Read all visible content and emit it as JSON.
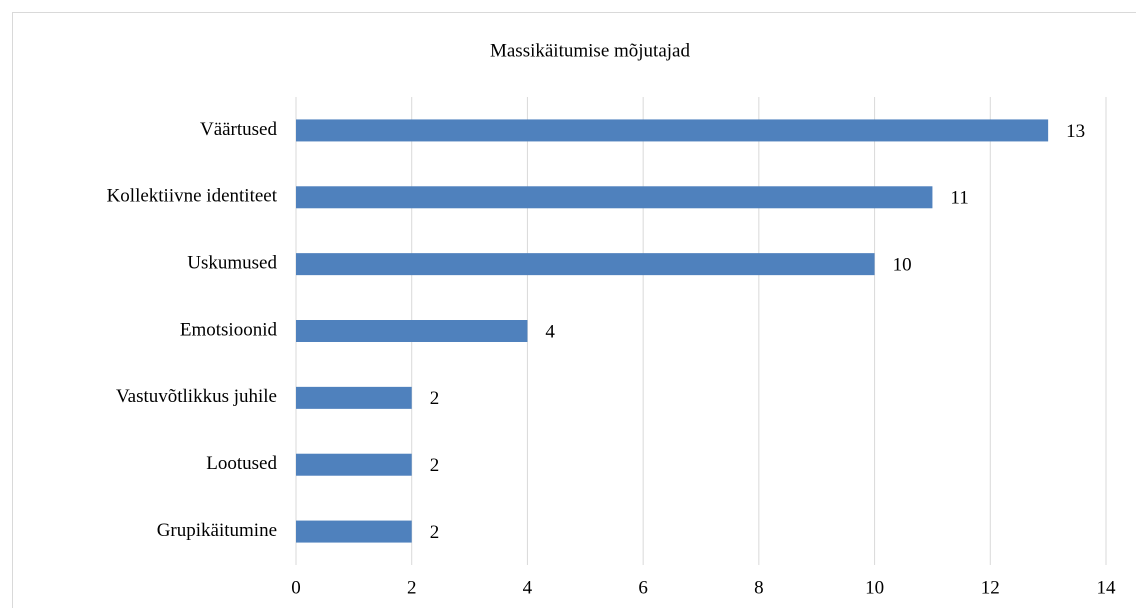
{
  "chart_data": {
    "type": "bar",
    "orientation": "horizontal",
    "title": "Massikäitumise mõjutajad",
    "categories": [
      "Väärtused",
      "Kollektiivne identiteet",
      "Uskumused",
      "Emotsioonid",
      "Vastuvõtlikkus juhile",
      "Lootused",
      "Grupikäitumine"
    ],
    "values": [
      13,
      11,
      10,
      4,
      2,
      2,
      2
    ],
    "color": "#4f81bd",
    "xlim": [
      0,
      14
    ],
    "xticks": [
      0,
      2,
      4,
      6,
      8,
      10,
      12,
      14
    ],
    "grid": true
  }
}
